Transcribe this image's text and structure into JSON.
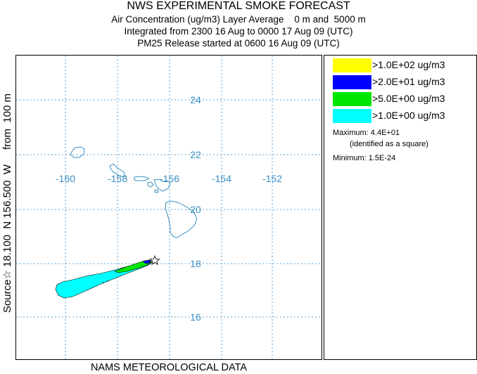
{
  "titles": {
    "line1": "NWS EXPERIMENTAL SMOKE FORECAST",
    "line2": "Air Concentration (ug/m3) Layer Average    0 m and  5000 m",
    "line3": "Integrated from 2300 16 Aug to 0000 17 Aug 09 (UTC)",
    "line4": "PM25 Release started at 0600 16 Aug 09 (UTC)"
  },
  "side_label": "Source☆ 18.100  N 156.500  W     from  100 m",
  "bottom_label": "NAMS METEOROLOGICAL DATA",
  "map": {
    "latitude_labels": [
      "24",
      "22",
      "20",
      "18",
      "16"
    ],
    "longitude_labels": [
      "-160",
      "-158",
      "-156",
      "-154",
      "-152"
    ],
    "gridline_color": "#5aa0d8",
    "label_color": "#3a8fc0",
    "coastline_color": "#3a8fc0",
    "source_marker": "star-icon"
  },
  "legend": {
    "entries": [
      {
        "label": ">1.0E+02 ug/m3",
        "color": "#ffff00"
      },
      {
        "label": ">2.0E+01 ug/m3",
        "color": "#0000ff"
      },
      {
        "label": ">5.0E+00 ug/m3",
        "color": "#00e600"
      },
      {
        "label": ">1.0E+00 ug/m3",
        "color": "#00ffff"
      }
    ],
    "maximum_label": "Maximum: 4.4E+01",
    "maximum_note": "(identified as a square)",
    "minimum_label": "Minimum: 1.5E-24"
  }
}
